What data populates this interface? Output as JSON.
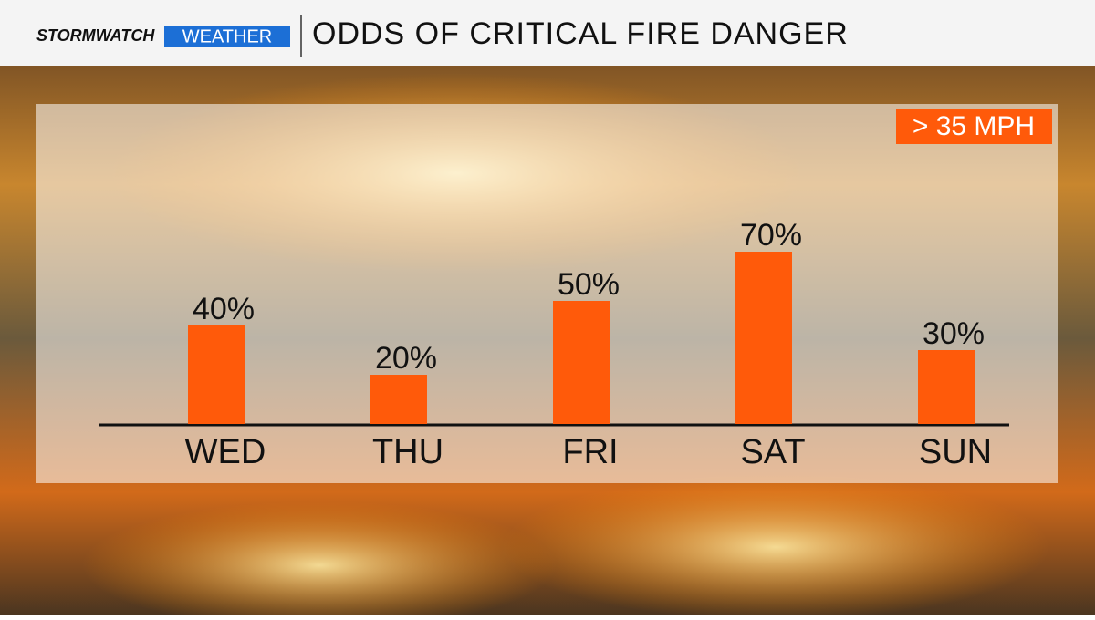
{
  "brand": {
    "name": "STORMWATCH",
    "section": "WEATHER"
  },
  "chart_data": {
    "type": "bar",
    "title": "ODDS OF CRITICAL FIRE DANGER",
    "badge": "> 35 MPH",
    "categories": [
      "WED",
      "THU",
      "FRI",
      "SAT",
      "SUN"
    ],
    "values": [
      40,
      20,
      50,
      70,
      30
    ],
    "value_labels": [
      "40%",
      "20%",
      "50%",
      "70%",
      "30%"
    ],
    "color": "#ff5a0a"
  }
}
